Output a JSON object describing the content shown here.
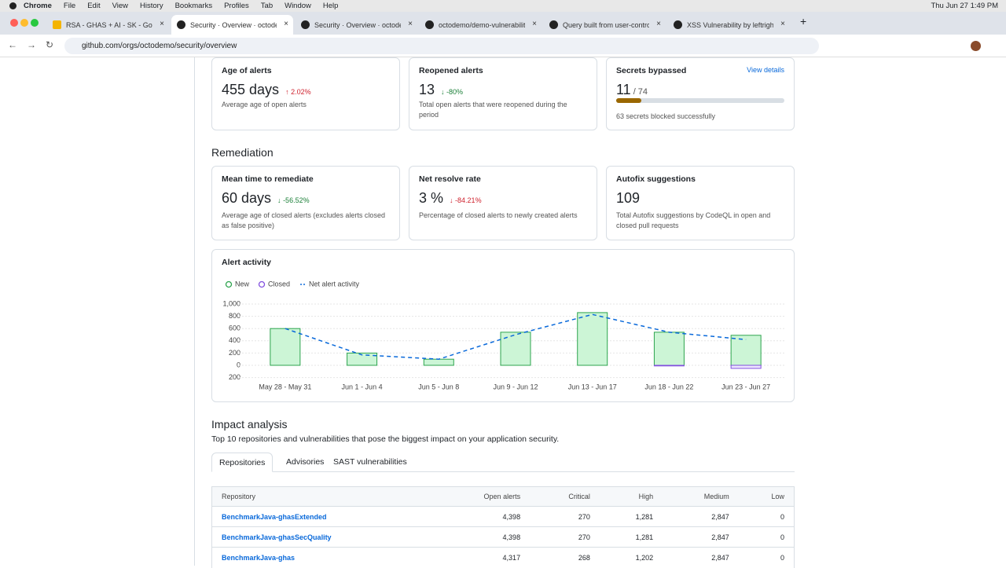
{
  "menubar": {
    "app": "Chrome",
    "menus": [
      "File",
      "Edit",
      "View",
      "History",
      "Bookmarks",
      "Profiles",
      "Tab",
      "Window",
      "Help"
    ],
    "clock": "Thu Jun 27  1:49 PM"
  },
  "browser_tabs": [
    "RSA - GHAS + AI - SK - Goog",
    "Security · Overview · octoden",
    "Security · Overview · octoden",
    "octodemo/demo-vulnerabiliti",
    "Query built from user-control",
    "XSS Vulnerability by leftright"
  ],
  "url": "github.com/orgs/octodemo/security/overview",
  "detection_cards": [
    {
      "title": "Age of alerts",
      "value": "455 days",
      "delta": "2.02%",
      "description": "Average age of open alerts"
    },
    {
      "title": "Reopened alerts",
      "value": "13",
      "delta": "-80%",
      "description": "Total open alerts that were reopened during the period"
    },
    {
      "title": "Secrets bypassed",
      "link": "View details",
      "value": 11,
      "total": 74,
      "total_label": "/ 74",
      "description": "63 secrets blocked successfully"
    }
  ],
  "remediation": {
    "heading": "Remediation",
    "cards": [
      {
        "title": "Mean time to remediate",
        "value": "60 days",
        "delta": "-56.52%",
        "description": "Average age of closed alerts (excludes alerts closed as false positive)"
      },
      {
        "title": "Net resolve rate",
        "value": "3 %",
        "delta": "-84.21%",
        "description": "Percentage of closed alerts to newly created alerts"
      },
      {
        "title": "Autofix suggestions",
        "value": "109",
        "description": "Total Autofix suggestions by CodeQL in open and closed pull requests"
      }
    ]
  },
  "chart_data": {
    "type": "bar",
    "title": "Alert activity",
    "categories": [
      "May 28 - May 31",
      "Jun 1 - Jun 4",
      "Jun 5 - Jun 8",
      "Jun 9 - Jun 12",
      "Jun 13 - Jun 17",
      "Jun 18 - Jun 22",
      "Jun 23 - Jun 27"
    ],
    "series": [
      {
        "name": "New",
        "color": "#2da44e",
        "values": [
          600,
          200,
          100,
          540,
          860,
          540,
          490
        ]
      },
      {
        "name": "Closed",
        "color": "#8250df",
        "values": [
          0,
          0,
          0,
          0,
          0,
          -10,
          -50
        ]
      },
      {
        "name": "Net alert activity",
        "color": "#0969da",
        "type": "line",
        "values": [
          600,
          170,
          100,
          500,
          830,
          540,
          420
        ]
      }
    ],
    "ylim": [
      -200,
      1000
    ],
    "yticks": [
      {
        "value": 1000,
        "label": "1,000"
      },
      800,
      600,
      400,
      200,
      0,
      {
        "value": -200,
        "label": "200"
      }
    ],
    "grid": true
  },
  "impact": {
    "heading": "Impact analysis",
    "subtitle": "Top 10 repositories and vulnerabilities that pose the biggest impact on your application security.",
    "tabs": [
      "Repositories",
      "Advisories",
      "SAST vulnerabilities"
    ],
    "table": {
      "headers": [
        "Repository",
        "Open alerts",
        "Critical",
        "High",
        "Medium",
        "Low"
      ],
      "rows": [
        [
          "BenchmarkJava-ghasExtended",
          "4,398",
          "270",
          "1,281",
          "2,847",
          "0"
        ],
        [
          "BenchmarkJava-ghasSecQuality",
          "4,398",
          "270",
          "1,281",
          "2,847",
          "0"
        ],
        [
          "BenchmarkJava-ghas",
          "4,317",
          "268",
          "1,202",
          "2,847",
          "0"
        ]
      ]
    }
  }
}
